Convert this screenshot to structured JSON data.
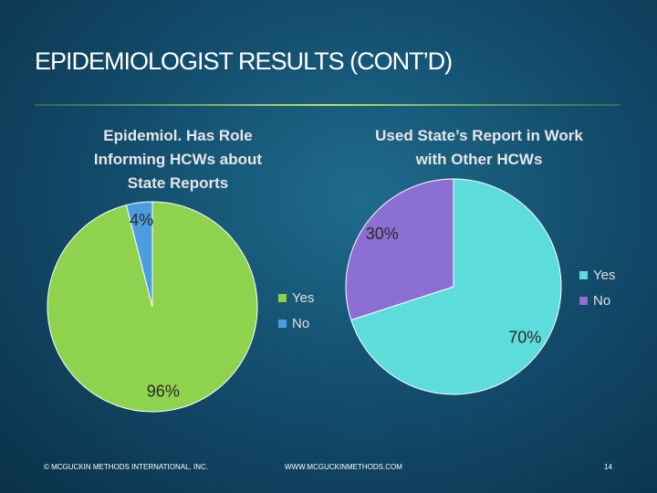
{
  "title": "EPIDEMIOLOGIST RESULTS (CONT’D)",
  "chart_data": [
    {
      "type": "pie",
      "title": "Epidemiol. Has Role Informing HCWs about State Reports",
      "categories": [
        "Yes",
        "No"
      ],
      "values": [
        96,
        4
      ],
      "value_labels": [
        "96%",
        "4%"
      ],
      "colors": [
        "#8fd24e",
        "#4a9ee0"
      ]
    },
    {
      "type": "pie",
      "title": "Used State’s Report in Work with Other HCWs",
      "categories": [
        "Yes",
        "No"
      ],
      "values": [
        70,
        30
      ],
      "value_labels": [
        "70%",
        "30%"
      ],
      "colors": [
        "#5cdcda",
        "#8b6fd2"
      ]
    }
  ],
  "footer": {
    "left": "© MCGUCKIN METHODS INTERNATIONAL, INC.",
    "center": "WWW.MCGUCKINMETHODS.COM",
    "page": "14"
  }
}
